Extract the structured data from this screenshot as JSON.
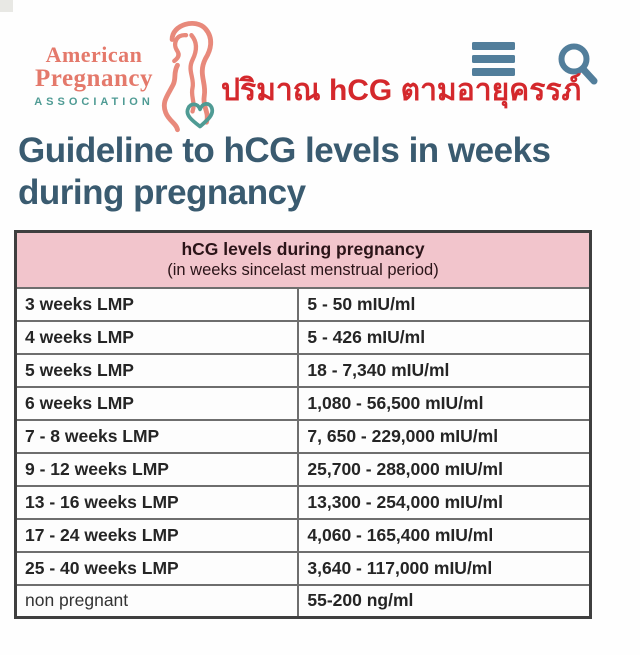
{
  "page": {
    "background": "#fefefe"
  },
  "logo": {
    "line1": "American",
    "line2": "Pregnancy",
    "line3": "ASSOCIATION",
    "brand_color": "#e4796b",
    "association_color": "#4f9b94"
  },
  "header": {
    "thai_title": "ปริมาณ hCG ตามอายุครรภ์",
    "thai_title_color": "#d4282c",
    "icon_color": "#527e9b"
  },
  "heading": {
    "text": "Guideline to hCG levels in weeks during pregnancy",
    "color": "#3a5b70"
  },
  "table": {
    "header": {
      "title": "hCG levels during pregnancy",
      "subtitle": "(in weeks sincelast menstrual period)",
      "background": "#f2c5cc"
    },
    "rows": [
      {
        "label": "3 weeks LMP",
        "value": "5 - 50 mIU/ml"
      },
      {
        "label": "4 weeks LMP",
        "value": "5 - 426 mIU/ml"
      },
      {
        "label": "5 weeks LMP",
        "value": "18 - 7,340 mIU/ml"
      },
      {
        "label": "6 weeks LMP",
        "value": "1,080 - 56,500 mIU/ml"
      },
      {
        "label": "7 - 8 weeks LMP",
        "value": "7, 650 - 229,000 mIU/ml"
      },
      {
        "label": "9 - 12 weeks LMP",
        "value": "25,700 - 288,000 mIU/ml"
      },
      {
        "label": "13 - 16 weeks LMP",
        "value": "13,300 - 254,000 mIU/ml"
      },
      {
        "label": "17 - 24 weeks LMP",
        "value": "4,060 - 165,400 mIU/ml"
      },
      {
        "label": "25 - 40 weeks LMP",
        "value": "3,640 - 117,000 mIU/ml"
      },
      {
        "label": "non pregnant",
        "value": "55-200 ng/ml",
        "label_bold": false
      }
    ]
  }
}
